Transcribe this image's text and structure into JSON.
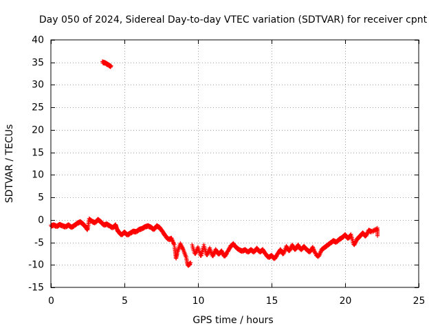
{
  "chart_data": {
    "type": "scatter",
    "title": "Day 050 of 2024, Sidereal Day-to-day VTEC variation (SDTVAR) for receiver cpnt",
    "xlabel": "GPS time / hours",
    "ylabel": "SDTVAR / TECUs",
    "xlim": [
      0,
      25
    ],
    "ylim": [
      -15,
      40
    ],
    "x_ticks": [
      0,
      5,
      10,
      15,
      20,
      25
    ],
    "y_ticks": [
      -15,
      -10,
      -5,
      0,
      5,
      10,
      15,
      20,
      25,
      30,
      35,
      40
    ],
    "grid": true,
    "marker": "+",
    "colors": {
      "points": "#ff0000",
      "grid": "#a0a0a0",
      "axes": "#000000"
    },
    "series": [
      {
        "name": "SDTVAR",
        "points": [
          [
            0.0,
            -1.2
          ],
          [
            0.2,
            -1.0
          ],
          [
            0.4,
            -1.3
          ],
          [
            0.6,
            -0.9
          ],
          [
            0.8,
            -1.2
          ],
          [
            1.0,
            -1.4
          ],
          [
            1.2,
            -1.0
          ],
          [
            1.4,
            -1.5
          ],
          [
            1.6,
            -1.1
          ],
          [
            1.8,
            -0.6
          ],
          [
            2.0,
            -0.3
          ],
          [
            2.2,
            -0.8
          ],
          [
            2.4,
            -1.6
          ],
          [
            2.5,
            -2.0
          ],
          [
            2.6,
            0.3
          ],
          [
            2.8,
            -0.2
          ],
          [
            3.0,
            -0.5
          ],
          [
            3.2,
            0.2
          ],
          [
            3.4,
            -0.3
          ],
          [
            3.6,
            -1.0
          ],
          [
            3.8,
            -0.8
          ],
          [
            4.0,
            -1.2
          ],
          [
            4.2,
            -1.6
          ],
          [
            4.4,
            -1.0
          ],
          [
            4.5,
            -2.0
          ],
          [
            4.6,
            -2.5
          ],
          [
            4.8,
            -3.2
          ],
          [
            5.0,
            -2.6
          ],
          [
            5.2,
            -3.2
          ],
          [
            5.4,
            -2.8
          ],
          [
            5.6,
            -2.4
          ],
          [
            5.8,
            -2.5
          ],
          [
            6.0,
            -2.0
          ],
          [
            6.2,
            -1.8
          ],
          [
            6.4,
            -1.4
          ],
          [
            6.6,
            -1.2
          ],
          [
            6.8,
            -1.5
          ],
          [
            7.0,
            -2.0
          ],
          [
            7.2,
            -1.2
          ],
          [
            7.4,
            -1.6
          ],
          [
            7.6,
            -2.5
          ],
          [
            7.8,
            -3.5
          ],
          [
            8.0,
            -4.2
          ],
          [
            8.2,
            -4.0
          ],
          [
            8.4,
            -5.5
          ],
          [
            8.5,
            -8.5
          ],
          [
            8.6,
            -7.0
          ],
          [
            8.8,
            -5.2
          ],
          [
            9.0,
            -6.5
          ],
          [
            9.2,
            -8.2
          ],
          [
            9.3,
            -10.0
          ],
          [
            9.5,
            -9.5
          ],
          [
            9.6,
            -5.5
          ],
          [
            9.8,
            -7.5
          ],
          [
            10.0,
            -6.0
          ],
          [
            10.2,
            -8.0
          ],
          [
            10.4,
            -5.5
          ],
          [
            10.6,
            -7.8
          ],
          [
            10.8,
            -6.2
          ],
          [
            11.0,
            -8.0
          ],
          [
            11.2,
            -6.5
          ],
          [
            11.4,
            -7.5
          ],
          [
            11.6,
            -6.8
          ],
          [
            11.8,
            -8.0
          ],
          [
            12.0,
            -7.0
          ],
          [
            12.2,
            -5.8
          ],
          [
            12.4,
            -5.2
          ],
          [
            12.6,
            -6.0
          ],
          [
            12.8,
            -6.5
          ],
          [
            13.0,
            -6.8
          ],
          [
            13.2,
            -6.5
          ],
          [
            13.4,
            -7.0
          ],
          [
            13.6,
            -6.5
          ],
          [
            13.8,
            -7.0
          ],
          [
            14.0,
            -6.2
          ],
          [
            14.2,
            -7.0
          ],
          [
            14.4,
            -6.5
          ],
          [
            14.6,
            -7.5
          ],
          [
            14.8,
            -8.2
          ],
          [
            15.0,
            -7.8
          ],
          [
            15.2,
            -8.5
          ],
          [
            15.4,
            -7.5
          ],
          [
            15.6,
            -6.5
          ],
          [
            15.8,
            -7.5
          ],
          [
            16.0,
            -5.8
          ],
          [
            16.2,
            -6.8
          ],
          [
            16.4,
            -5.5
          ],
          [
            16.6,
            -6.5
          ],
          [
            16.8,
            -5.5
          ],
          [
            17.0,
            -6.5
          ],
          [
            17.2,
            -5.8
          ],
          [
            17.4,
            -6.5
          ],
          [
            17.6,
            -7.0
          ],
          [
            17.8,
            -6.0
          ],
          [
            18.0,
            -7.5
          ],
          [
            18.2,
            -8.0
          ],
          [
            18.4,
            -6.5
          ],
          [
            18.6,
            -6.0
          ],
          [
            18.8,
            -5.5
          ],
          [
            19.0,
            -5.0
          ],
          [
            19.2,
            -4.5
          ],
          [
            19.4,
            -4.8
          ],
          [
            19.6,
            -4.2
          ],
          [
            19.8,
            -3.8
          ],
          [
            20.0,
            -3.2
          ],
          [
            20.2,
            -4.0
          ],
          [
            20.4,
            -3.2
          ],
          [
            20.6,
            -5.5
          ],
          [
            20.8,
            -4.2
          ],
          [
            21.0,
            -3.5
          ],
          [
            21.2,
            -2.8
          ],
          [
            21.4,
            -3.5
          ],
          [
            21.6,
            -2.2
          ],
          [
            21.8,
            -2.5
          ],
          [
            22.2,
            -1.8
          ],
          [
            22.2,
            -3.5
          ],
          [
            3.5,
            35.2
          ],
          [
            3.7,
            35.0
          ],
          [
            3.9,
            34.6
          ],
          [
            4.1,
            34.2
          ]
        ]
      }
    ]
  }
}
